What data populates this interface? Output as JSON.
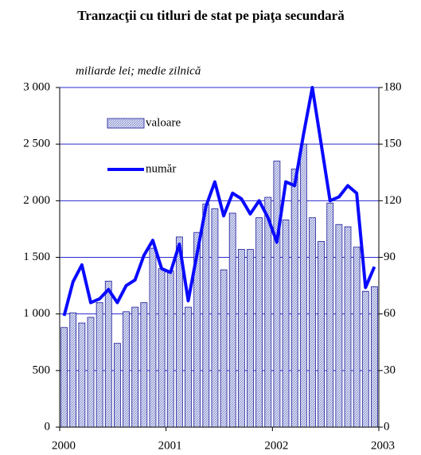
{
  "chart_data": {
    "type": "bar",
    "title": "Tranzacţii cu titluri de stat pe piaţa secundară",
    "subtitle": "miliarde lei; medie zilnică",
    "categories": [
      null,
      null,
      null,
      null,
      null,
      null,
      null,
      null,
      null,
      null,
      null,
      null,
      null,
      null,
      null,
      null,
      null,
      null,
      null,
      null,
      null,
      null,
      null,
      null,
      null,
      null,
      null,
      null,
      null,
      null,
      null,
      null,
      null,
      null,
      null,
      null
    ],
    "xtick_labels": [
      "2000",
      "2001",
      "2002",
      "2003"
    ],
    "series": [
      {
        "name": "valoare",
        "type": "bar",
        "axis": "y",
        "color": "#1a1a9a",
        "values": [
          880,
          1010,
          920,
          970,
          1100,
          1290,
          740,
          1020,
          1060,
          1100,
          1580,
          1400,
          1380,
          1680,
          1060,
          1720,
          1970,
          1930,
          1390,
          1890,
          1570,
          1570,
          1850,
          2030,
          2350,
          1830,
          2280,
          2500,
          1850,
          1640,
          1980,
          1790,
          1770,
          1590,
          1200,
          1240
        ]
      },
      {
        "name": "număr",
        "type": "line",
        "axis": "y2",
        "color": "#0a0aff",
        "values": [
          59,
          77,
          86,
          66,
          68,
          73,
          66,
          75,
          78,
          91,
          99,
          84,
          82,
          97,
          67,
          92,
          117,
          130,
          112,
          124,
          121,
          113,
          120,
          111,
          98,
          130,
          128,
          155,
          180,
          150,
          120,
          122,
          128,
          124,
          74,
          85
        ]
      }
    ],
    "ylim": [
      0,
      3000
    ],
    "yticks": [
      0,
      500,
      {
        "value": 1000,
        "label": "1 000"
      },
      {
        "value": 1500,
        "label": "1 500"
      },
      {
        "value": 2000,
        "label": "2 000"
      },
      {
        "value": 2500,
        "label": "2 500"
      },
      {
        "value": 3000,
        "label": "3 000"
      }
    ],
    "y2lim": [
      0,
      180
    ],
    "y2ticks": [
      0,
      30,
      60,
      90,
      120,
      150,
      180
    ],
    "grid": true
  }
}
